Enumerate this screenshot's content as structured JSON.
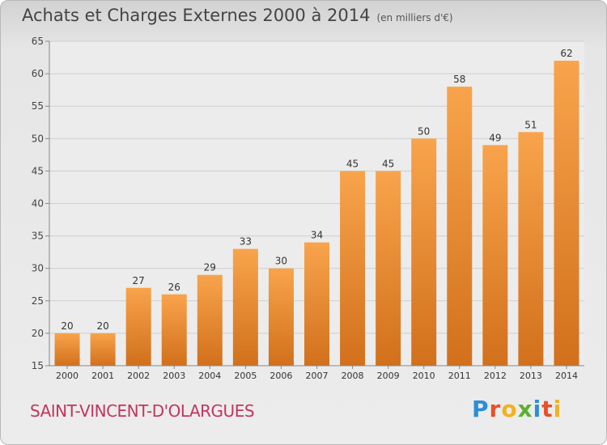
{
  "header": {
    "title": "Achats et Charges Externes 2000 à 2014",
    "subtitle": "(en milliers d'€)"
  },
  "footer": {
    "city": "SAINT-VINCENT-D'OLARGUES",
    "logo_text": "Proxiti"
  },
  "colors": {
    "bar_top": "#f8a44c",
    "bar_bottom": "#d2701c",
    "city": "#c0365f"
  },
  "chart_data": {
    "type": "bar",
    "title": "Achats et Charges Externes 2000 à 2014",
    "subtitle": "(en milliers d'€)",
    "categories": [
      "2000",
      "2001",
      "2002",
      "2003",
      "2004",
      "2005",
      "2006",
      "2007",
      "2008",
      "2009",
      "2010",
      "2011",
      "2012",
      "2013",
      "2014"
    ],
    "values": [
      20,
      20,
      27,
      26,
      29,
      33,
      30,
      34,
      45,
      45,
      50,
      58,
      49,
      51,
      62
    ],
    "ylim": [
      15,
      65
    ],
    "yticks": [
      15,
      20,
      25,
      30,
      35,
      40,
      45,
      50,
      55,
      60,
      65
    ],
    "grid": true
  }
}
